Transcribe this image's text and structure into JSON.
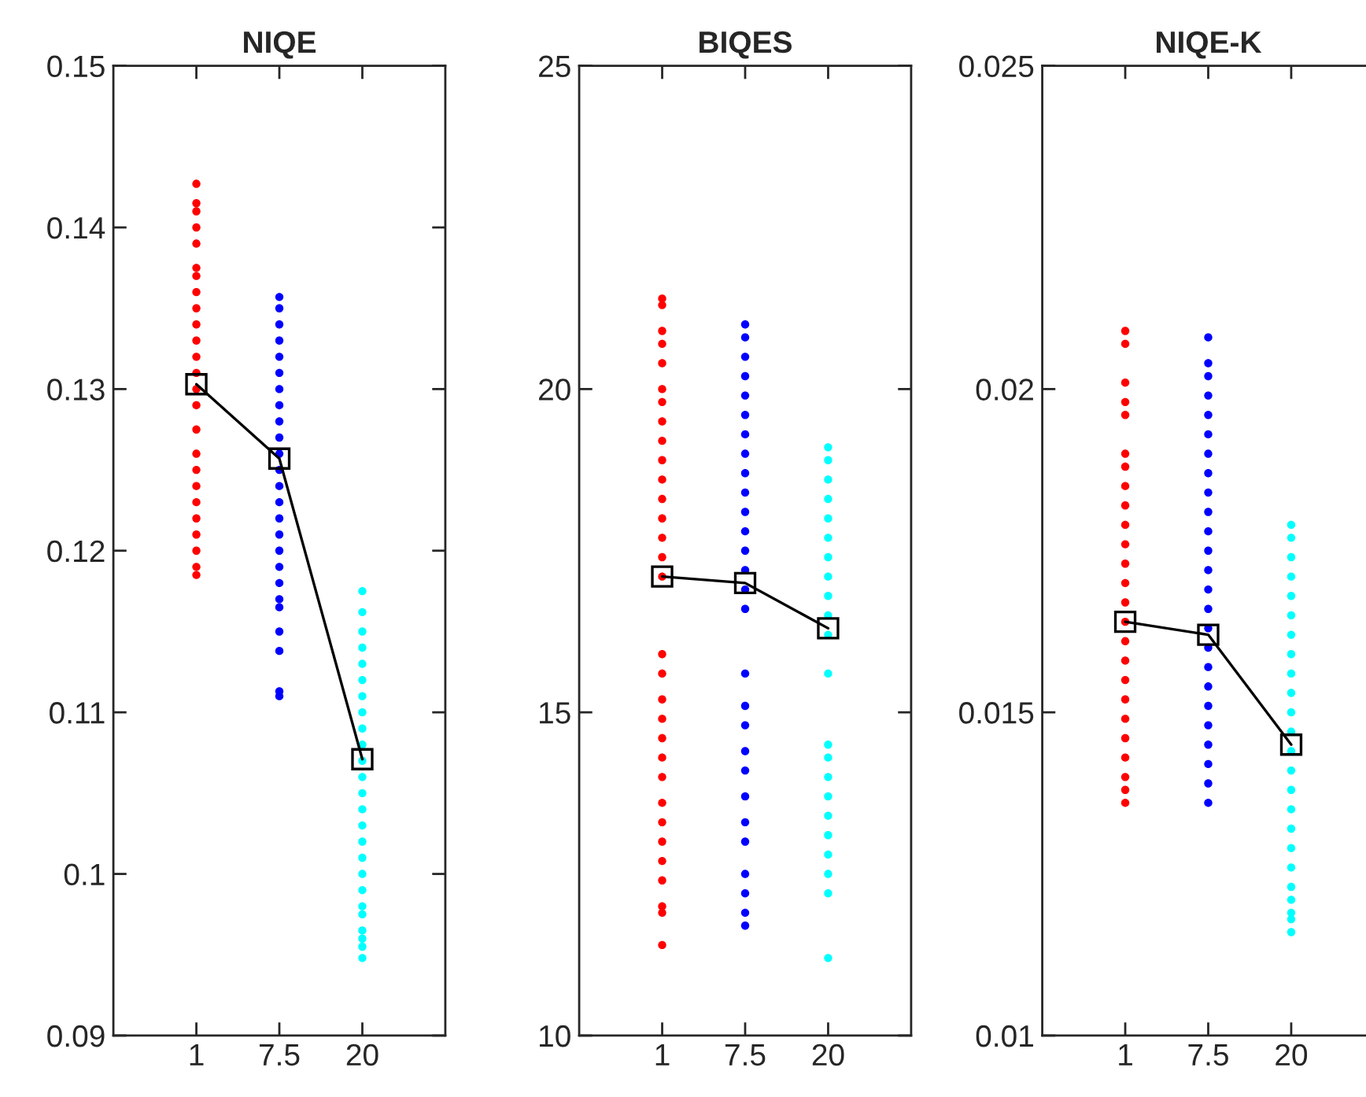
{
  "chart_data": [
    {
      "type": "scatter",
      "title": "NIQE",
      "categories": [
        "1",
        "7.5",
        "20"
      ],
      "ylim": [
        0.09,
        0.15
      ],
      "yticks": [
        0.09,
        0.1,
        0.11,
        0.12,
        0.13,
        0.14,
        0.15
      ],
      "grid": false,
      "series": [
        {
          "type": "scatter",
          "color": "#ff0000",
          "marker": "circle",
          "x": [
            "1",
            "1",
            "1",
            "1",
            "1",
            "1",
            "1",
            "1",
            "1",
            "1",
            "1",
            "1",
            "1",
            "1",
            "1",
            "1",
            "1",
            "1",
            "1",
            "1",
            "1",
            "1",
            "1",
            "1",
            "1"
          ],
          "values": [
            0.1427,
            0.1415,
            0.141,
            0.14,
            0.139,
            0.1375,
            0.137,
            0.136,
            0.135,
            0.134,
            0.133,
            0.132,
            0.131,
            0.13,
            0.129,
            0.1275,
            0.126,
            0.125,
            0.124,
            0.123,
            0.122,
            0.121,
            0.12,
            0.119,
            0.1185
          ]
        },
        {
          "type": "scatter",
          "color": "#0000ff",
          "marker": "circle",
          "x": [
            "7.5",
            "7.5",
            "7.5",
            "7.5",
            "7.5",
            "7.5",
            "7.5",
            "7.5",
            "7.5",
            "7.5",
            "7.5",
            "7.5",
            "7.5",
            "7.5",
            "7.5",
            "7.5",
            "7.5",
            "7.5",
            "7.5",
            "7.5",
            "7.5",
            "7.5",
            "7.5",
            "7.5",
            "7.5"
          ],
          "values": [
            0.1357,
            0.135,
            0.134,
            0.133,
            0.132,
            0.131,
            0.13,
            0.129,
            0.128,
            0.127,
            0.126,
            0.125,
            0.124,
            0.123,
            0.122,
            0.121,
            0.12,
            0.119,
            0.118,
            0.117,
            0.1165,
            0.115,
            0.1138,
            0.1113,
            0.111
          ]
        },
        {
          "type": "scatter",
          "color": "#00ffff",
          "marker": "circle",
          "x": [
            "20",
            "20",
            "20",
            "20",
            "20",
            "20",
            "20",
            "20",
            "20",
            "20",
            "20",
            "20",
            "20",
            "20",
            "20",
            "20",
            "20",
            "20",
            "20",
            "20",
            "20",
            "20",
            "20",
            "20",
            "20"
          ],
          "values": [
            0.1175,
            0.1162,
            0.115,
            0.114,
            0.113,
            0.112,
            0.111,
            0.11,
            0.109,
            0.108,
            0.107,
            0.106,
            0.105,
            0.104,
            0.103,
            0.102,
            0.101,
            0.1,
            0.099,
            0.098,
            0.0975,
            0.0965,
            0.0955,
            0.096,
            0.0948
          ]
        },
        {
          "type": "line",
          "color": "#000000",
          "marker": "square",
          "line_style": "solid",
          "values": [
            0.1303,
            0.1257,
            0.1071
          ]
        }
      ]
    },
    {
      "type": "scatter",
      "title": "BIQES",
      "categories": [
        "1",
        "7.5",
        "20"
      ],
      "ylim": [
        10,
        25
      ],
      "yticks": [
        10,
        15,
        20,
        25
      ],
      "grid": false,
      "series": [
        {
          "type": "scatter",
          "color": "#ff0000",
          "marker": "circle",
          "x": [
            "1",
            "1",
            "1",
            "1",
            "1",
            "1",
            "1",
            "1",
            "1",
            "1",
            "1",
            "1",
            "1",
            "1",
            "1",
            "1",
            "1",
            "1",
            "1",
            "1",
            "1",
            "1",
            "1",
            "1",
            "1",
            "1",
            "1",
            "1",
            "1",
            "1",
            "1"
          ],
          "values": [
            21.4,
            21.3,
            20.9,
            20.7,
            20.4,
            20.0,
            19.8,
            19.5,
            19.2,
            18.9,
            18.6,
            18.3,
            18.0,
            17.7,
            17.4,
            17.1,
            15.9,
            15.6,
            15.2,
            14.9,
            14.6,
            14.3,
            14.0,
            13.6,
            13.3,
            13.0,
            12.7,
            12.4,
            12.0,
            11.9,
            11.4
          ]
        },
        {
          "type": "scatter",
          "color": "#0000ff",
          "marker": "circle",
          "x": [
            "7.5",
            "7.5",
            "7.5",
            "7.5",
            "7.5",
            "7.5",
            "7.5",
            "7.5",
            "7.5",
            "7.5",
            "7.5",
            "7.5",
            "7.5",
            "7.5",
            "7.5",
            "7.5",
            "7.5",
            "7.5",
            "7.5",
            "7.5",
            "7.5",
            "7.5",
            "7.5",
            "7.5",
            "7.5",
            "7.5",
            "7.5",
            "7.5"
          ],
          "values": [
            21.0,
            20.8,
            20.5,
            20.2,
            19.9,
            19.6,
            19.3,
            19.0,
            18.7,
            18.4,
            18.1,
            17.8,
            17.5,
            17.2,
            16.9,
            16.6,
            15.6,
            15.1,
            14.8,
            14.4,
            14.1,
            13.7,
            13.3,
            13.0,
            12.5,
            12.2,
            11.9,
            11.7
          ]
        },
        {
          "type": "scatter",
          "color": "#00ffff",
          "marker": "circle",
          "x": [
            "20",
            "20",
            "20",
            "20",
            "20",
            "20",
            "20",
            "20",
            "20",
            "20",
            "20",
            "20",
            "20",
            "20",
            "20",
            "20",
            "20",
            "20",
            "20",
            "20",
            "20",
            "20"
          ],
          "values": [
            19.1,
            18.9,
            18.6,
            18.3,
            18.0,
            17.7,
            17.4,
            17.1,
            16.8,
            16.5,
            16.2,
            15.6,
            14.5,
            14.3,
            14.0,
            13.7,
            13.4,
            13.1,
            12.8,
            12.5,
            12.2,
            11.2
          ]
        },
        {
          "type": "line",
          "color": "#000000",
          "marker": "square",
          "line_style": "solid",
          "values": [
            17.1,
            17.0,
            16.3
          ]
        }
      ]
    },
    {
      "type": "scatter",
      "title": "NIQE-K",
      "categories": [
        "1",
        "7.5",
        "20"
      ],
      "ylim": [
        0.01,
        0.025
      ],
      "yticks": [
        0.01,
        0.015,
        0.02,
        0.025
      ],
      "grid": false,
      "series": [
        {
          "type": "scatter",
          "color": "#ff0000",
          "marker": "circle",
          "x": [
            "1",
            "1",
            "1",
            "1",
            "1",
            "1",
            "1",
            "1",
            "1",
            "1",
            "1",
            "1",
            "1",
            "1",
            "1",
            "1",
            "1",
            "1",
            "1",
            "1",
            "1",
            "1",
            "1",
            "1",
            "1"
          ],
          "values": [
            0.0209,
            0.0207,
            0.0201,
            0.0198,
            0.0196,
            0.019,
            0.0188,
            0.0185,
            0.0182,
            0.0179,
            0.0176,
            0.0173,
            0.017,
            0.0167,
            0.0164,
            0.0161,
            0.0158,
            0.0155,
            0.0152,
            0.0149,
            0.0146,
            0.0143,
            0.014,
            0.0138,
            0.0136
          ]
        },
        {
          "type": "scatter",
          "color": "#0000ff",
          "marker": "circle",
          "x": [
            "7.5",
            "7.5",
            "7.5",
            "7.5",
            "7.5",
            "7.5",
            "7.5",
            "7.5",
            "7.5",
            "7.5",
            "7.5",
            "7.5",
            "7.5",
            "7.5",
            "7.5",
            "7.5",
            "7.5",
            "7.5",
            "7.5",
            "7.5",
            "7.5",
            "7.5",
            "7.5",
            "7.5",
            "7.5"
          ],
          "values": [
            0.0208,
            0.0204,
            0.0202,
            0.0199,
            0.0196,
            0.0193,
            0.019,
            0.0187,
            0.0184,
            0.0181,
            0.0178,
            0.0175,
            0.0172,
            0.0169,
            0.0166,
            0.0163,
            0.016,
            0.0157,
            0.0154,
            0.0151,
            0.0148,
            0.0145,
            0.0142,
            0.0139,
            0.0136
          ]
        },
        {
          "type": "scatter",
          "color": "#00ffff",
          "marker": "circle",
          "x": [
            "20",
            "20",
            "20",
            "20",
            "20",
            "20",
            "20",
            "20",
            "20",
            "20",
            "20",
            "20",
            "20",
            "20",
            "20",
            "20",
            "20",
            "20",
            "20",
            "20",
            "20",
            "20",
            "20",
            "20"
          ],
          "values": [
            0.0179,
            0.0177,
            0.0174,
            0.0171,
            0.0168,
            0.0165,
            0.0162,
            0.0159,
            0.0156,
            0.0153,
            0.015,
            0.0147,
            0.0144,
            0.0141,
            0.0138,
            0.0135,
            0.0132,
            0.0129,
            0.0126,
            0.0123,
            0.0121,
            0.0119,
            0.0118,
            0.0116
          ]
        },
        {
          "type": "line",
          "color": "#000000",
          "marker": "square",
          "line_style": "solid",
          "values": [
            0.0164,
            0.0162,
            0.0145
          ]
        }
      ]
    }
  ]
}
